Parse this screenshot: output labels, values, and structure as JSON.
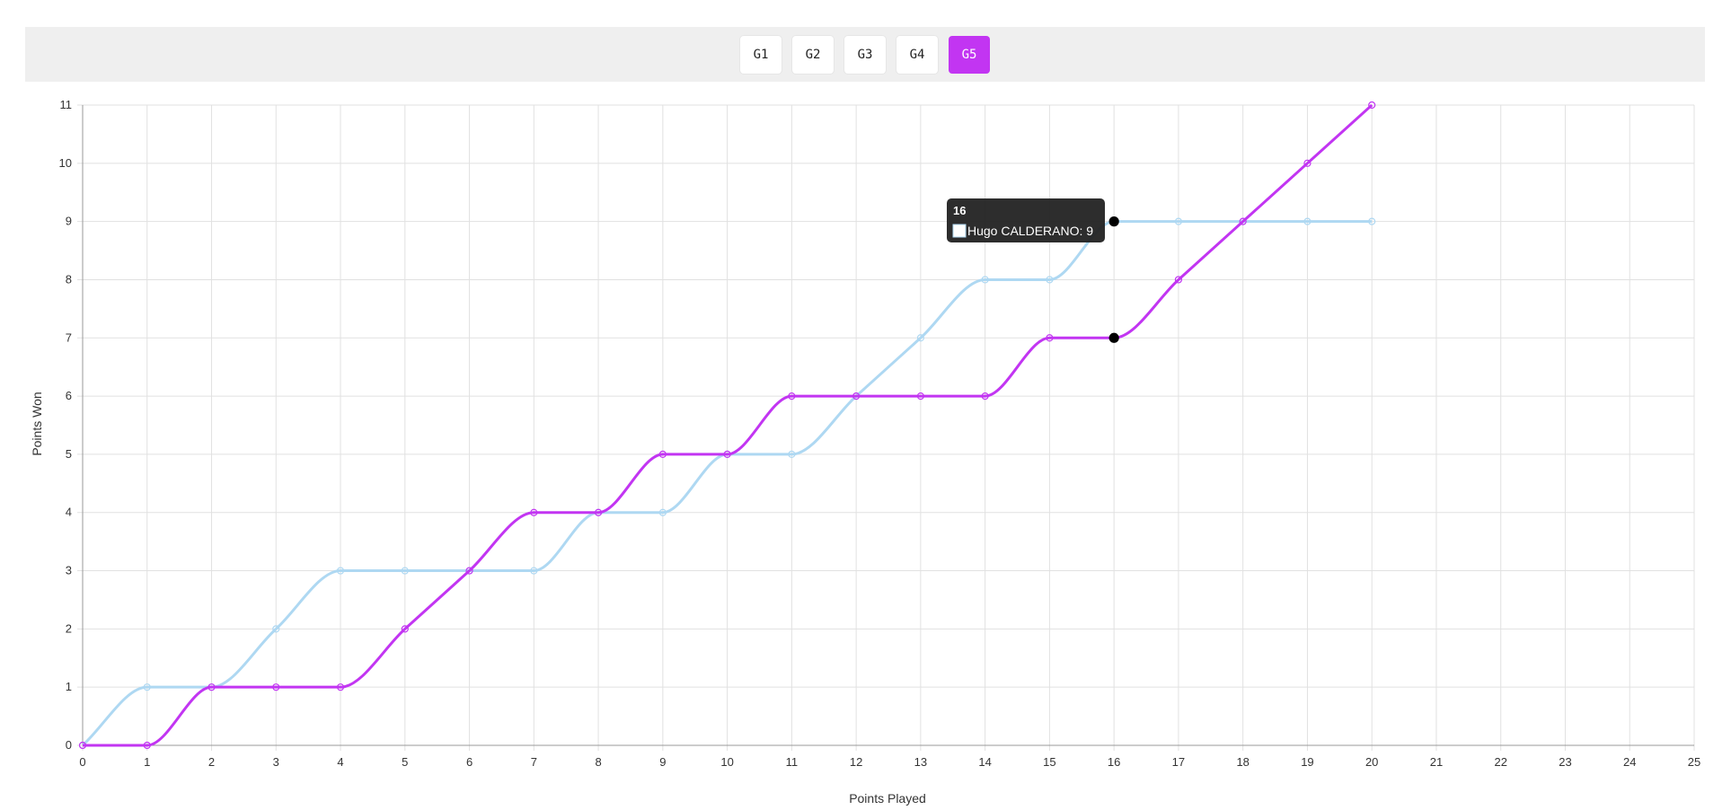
{
  "games": [
    {
      "label": "G1",
      "active": false
    },
    {
      "label": "G2",
      "active": false
    },
    {
      "label": "G3",
      "active": false
    },
    {
      "label": "G4",
      "active": false
    },
    {
      "label": "G5",
      "active": true
    }
  ],
  "colors": {
    "accent": "#c235f2",
    "series_light": "#aed8f2",
    "tooltip_bg": "#222222",
    "grid": "#e1e1e1"
  },
  "chart_data": {
    "type": "line",
    "xlabel": "Points Played",
    "ylabel": "Points Won",
    "xlim": [
      0,
      25
    ],
    "ylim": [
      0,
      11
    ],
    "x_ticks": [
      0,
      1,
      2,
      3,
      4,
      5,
      6,
      7,
      8,
      9,
      10,
      11,
      12,
      13,
      14,
      15,
      16,
      17,
      18,
      19,
      20,
      21,
      22,
      23,
      24,
      25
    ],
    "y_ticks": [
      0,
      1,
      2,
      3,
      4,
      5,
      6,
      7,
      8,
      9,
      10,
      11
    ],
    "grid": true,
    "series": [
      {
        "name": "Hugo CALDERANO",
        "color": "#aed8f2",
        "x": [
          0,
          1,
          2,
          3,
          4,
          5,
          6,
          7,
          8,
          9,
          10,
          11,
          12,
          13,
          14,
          15,
          16,
          17,
          18,
          19,
          20
        ],
        "values": [
          0,
          1,
          1,
          2,
          3,
          3,
          3,
          3,
          4,
          4,
          5,
          5,
          6,
          7,
          8,
          8,
          9,
          9,
          9,
          9,
          9
        ]
      },
      {
        "color": "#c235f2",
        "x": [
          0,
          1,
          2,
          3,
          4,
          5,
          6,
          7,
          8,
          9,
          10,
          11,
          12,
          13,
          14,
          15,
          16,
          17,
          18,
          19,
          20
        ],
        "values": [
          0,
          0,
          1,
          1,
          1,
          2,
          3,
          4,
          4,
          5,
          5,
          6,
          6,
          6,
          6,
          7,
          7,
          8,
          9,
          10,
          11
        ]
      }
    ],
    "tooltip": {
      "title": "16",
      "label": "Hugo CALDERANO: 9",
      "x": 16
    }
  }
}
